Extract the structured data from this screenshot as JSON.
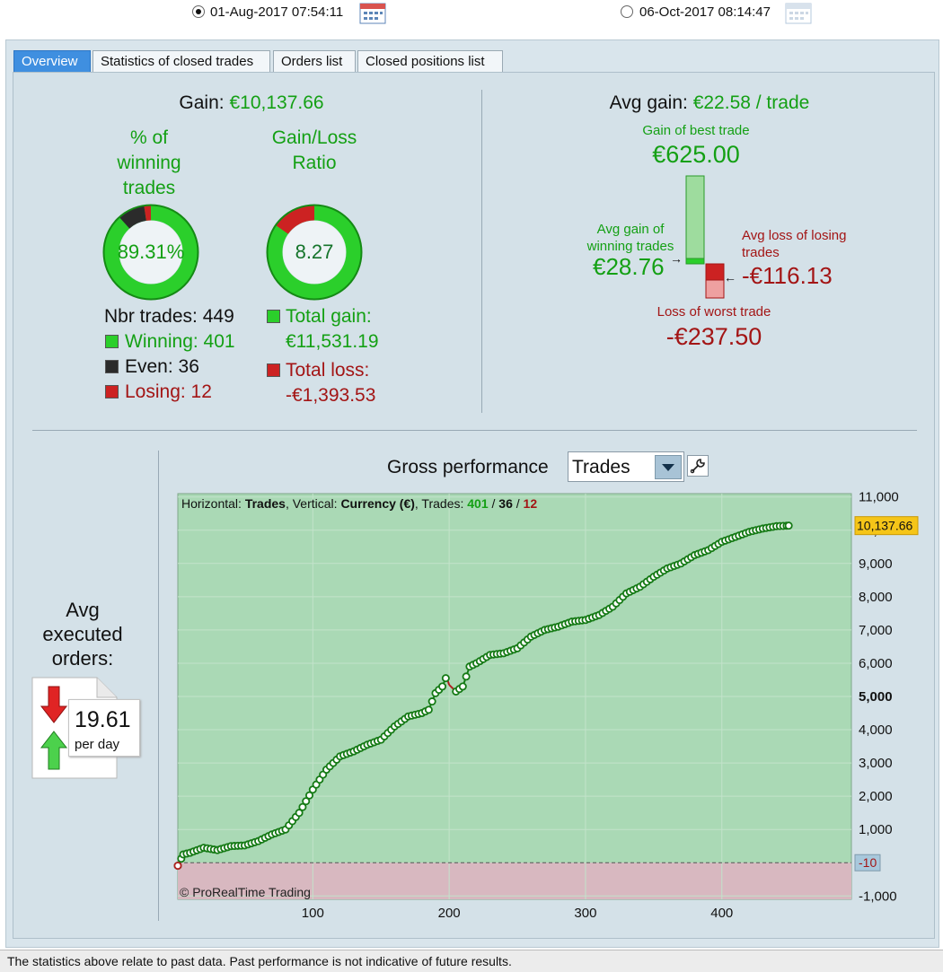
{
  "dates": {
    "start": "01-Aug-2017 07:54:11",
    "end": "06-Oct-2017 08:14:47"
  },
  "tabs": [
    "Overview",
    "Statistics of closed trades",
    "Orders list",
    "Closed positions list"
  ],
  "gain": {
    "label": "Gain:",
    "value": "€10,137.66"
  },
  "pct_winning": {
    "title_lines": [
      "% of",
      "winning",
      "trades"
    ],
    "value": "89.31%",
    "fraction": 0.8931
  },
  "gain_loss_ratio": {
    "title_lines": [
      "Gain/Loss",
      "Ratio"
    ],
    "value": "8.27"
  },
  "trades": {
    "nbr": "Nbr trades: 449",
    "winning": "Winning: 401",
    "even": "Even: 36",
    "losing": "Losing: 12"
  },
  "totals": {
    "gain_label": "Total gain:",
    "gain_value": "€11,531.19",
    "loss_label": "Total loss:",
    "loss_value": "-€1,393.53"
  },
  "avg_gain": {
    "label": "Avg gain:",
    "value": "€22.58 / trade"
  },
  "best_trade": {
    "label": "Gain of best trade",
    "value": "€625.00"
  },
  "avg_win": {
    "label_lines": [
      "Avg gain of",
      "winning trades"
    ],
    "value": "€28.76"
  },
  "avg_loss": {
    "label_lines": [
      "Avg loss of losing",
      "trades"
    ],
    "value": "-€116.13"
  },
  "worst_trade": {
    "label": "Loss of worst trade",
    "value": "-€237.50"
  },
  "avg_orders": {
    "label_lines": [
      "Avg",
      "executed",
      "orders:"
    ],
    "value": "19.61",
    "unit": "per day"
  },
  "perf": {
    "title": "Gross performance",
    "select": "Trades"
  },
  "chart_data": {
    "type": "line",
    "info": {
      "horizontal_label": "Horizontal:",
      "horizontal": "Trades",
      "vertical_label": ", Vertical:",
      "vertical": "Currency (€)",
      "trades_label": ", Trades:",
      "win": "401",
      "even": "36",
      "lose": "12",
      "sep": "/"
    },
    "watermark": "© ProRealTime Trading",
    "x_ticks": [
      "100",
      "200",
      "300",
      "400"
    ],
    "x_tick_values": [
      100,
      200,
      300,
      400
    ],
    "y_ticks": [
      "11,000",
      "10,000",
      "9,000",
      "8,000",
      "7,000",
      "6,000",
      "5,000",
      "4,000",
      "3,000",
      "2,000",
      "1,000",
      "-10",
      "-1,000"
    ],
    "y_tick_values": [
      11000,
      10000,
      9000,
      8000,
      7000,
      6000,
      5000,
      4000,
      3000,
      2000,
      1000,
      -10,
      -1000
    ],
    "xlim": [
      1,
      495
    ],
    "ylim": [
      -1100,
      11100
    ],
    "last_value_label": "10,137.66",
    "last_value": 10137.66,
    "zero_label": "-10",
    "x": [
      1,
      5,
      10,
      20,
      30,
      40,
      50,
      60,
      70,
      80,
      90,
      100,
      110,
      120,
      130,
      140,
      150,
      160,
      170,
      180,
      185,
      190,
      195,
      198,
      200,
      205,
      210,
      215,
      220,
      230,
      240,
      250,
      260,
      270,
      280,
      290,
      300,
      310,
      320,
      330,
      340,
      350,
      360,
      370,
      380,
      390,
      400,
      410,
      420,
      430,
      440,
      449
    ],
    "y": [
      -90,
      250,
      300,
      450,
      380,
      500,
      520,
      650,
      850,
      1000,
      1500,
      2200,
      2800,
      3200,
      3350,
      3550,
      3700,
      4100,
      4400,
      4500,
      4600,
      5100,
      5300,
      5600,
      5350,
      5150,
      5300,
      5900,
      6000,
      6250,
      6300,
      6450,
      6800,
      7000,
      7100,
      7250,
      7300,
      7450,
      7700,
      8100,
      8300,
      8600,
      8850,
      9000,
      9250,
      9400,
      9650,
      9800,
      9950,
      10050,
      10120,
      10137.66
    ]
  },
  "footer": "The statistics above relate to past data. Past performance is not indicative of future results."
}
